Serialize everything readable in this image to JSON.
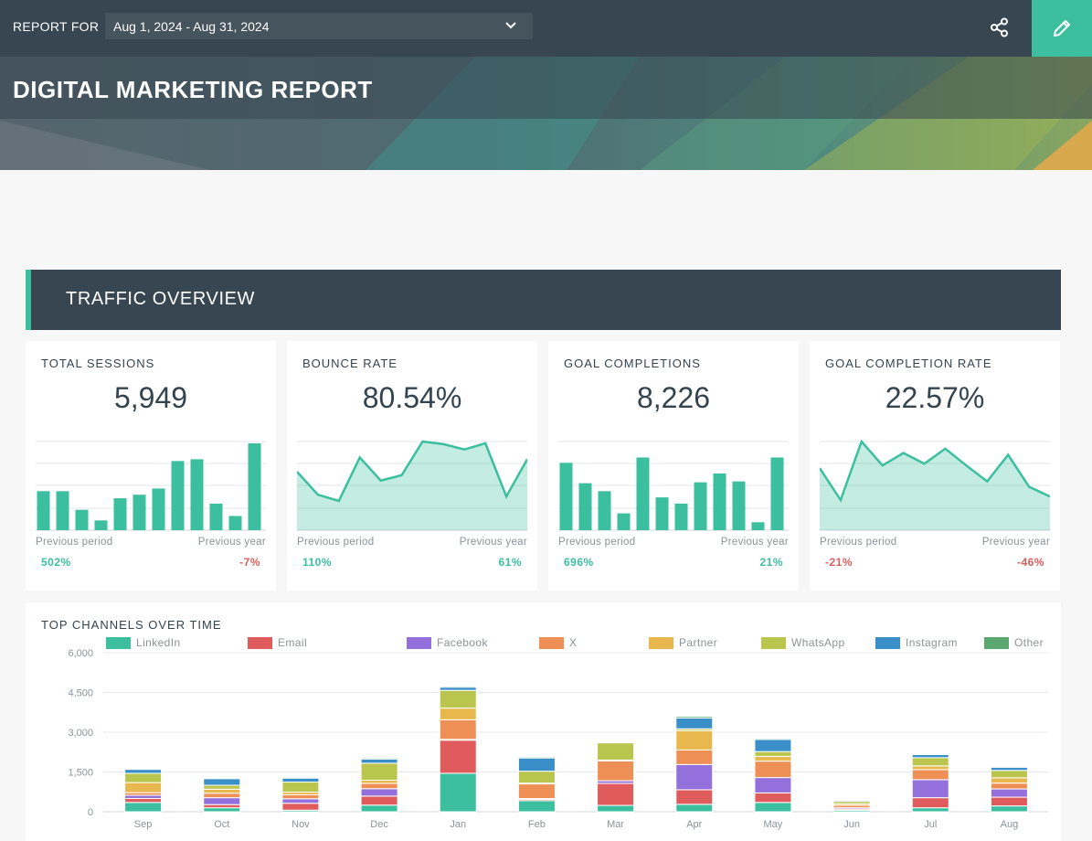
{
  "header": {
    "report_for_label": "REPORT FOR",
    "date_range": "Aug 1, 2024 - Aug 31, 2024",
    "share_icon": "share-icon",
    "edit_icon": "pencil-icon"
  },
  "banner": {
    "title": "DIGITAL MARKETING REPORT"
  },
  "section": {
    "title": "TRAFFIC OVERVIEW"
  },
  "colors": {
    "accent": "#3bbf9e",
    "dark": "#374651",
    "positive": "#3bbf9e",
    "negative": "#e05c5c"
  },
  "kpis": [
    {
      "title": "TOTAL SESSIONS",
      "value": "5,949",
      "chart_type": "bar",
      "values": [
        44,
        44,
        23,
        11,
        36,
        40,
        47,
        78,
        80,
        30,
        16,
        98
      ],
      "prev_label": "Previous period",
      "prev_value": "502%",
      "prev_trend": "positive",
      "year_label": "Previous year",
      "year_value": "-7%",
      "year_trend": "negative"
    },
    {
      "title": "BOUNCE RATE",
      "value": "80.54%",
      "chart_type": "area",
      "values": [
        66,
        40,
        33,
        82,
        56,
        62,
        100,
        97,
        91,
        98,
        38,
        80
      ],
      "prev_label": "Previous period",
      "prev_value": "110%",
      "prev_trend": "positive",
      "year_label": "Previous year",
      "year_value": "61%",
      "year_trend": "positive"
    },
    {
      "title": "GOAL COMPLETIONS",
      "value": "8,226",
      "chart_type": "bar",
      "values": [
        76,
        53,
        44,
        19,
        82,
        37,
        30,
        54,
        64,
        55,
        9,
        82
      ],
      "prev_label": "Previous period",
      "prev_value": "696%",
      "prev_trend": "positive",
      "year_label": "Previous year",
      "year_value": "21%",
      "year_trend": "positive"
    },
    {
      "title": "GOAL COMPLETION RATE",
      "value": "22.57%",
      "chart_type": "area",
      "values": [
        70,
        34,
        100,
        73,
        87,
        75,
        92,
        73,
        55,
        85,
        49,
        38
      ],
      "prev_label": "Previous period",
      "prev_value": "-21%",
      "prev_trend": "negative",
      "year_label": "Previous year",
      "year_value": "-46%",
      "year_trend": "negative"
    }
  ],
  "chart_data": {
    "type": "bar",
    "stacked": true,
    "title": "TOP CHANNELS OVER TIME",
    "categories": [
      "Sep",
      "Oct",
      "Nov",
      "Dec",
      "Jan",
      "Feb",
      "Mar",
      "Apr",
      "May",
      "Jun",
      "Jul",
      "Aug"
    ],
    "ylim": [
      0,
      6000
    ],
    "yticks": [
      0,
      1500,
      3000,
      4500,
      6000
    ],
    "ytick_labels": [
      "0",
      "1,500",
      "3,000",
      "4,500",
      "6,000"
    ],
    "grid": true,
    "legend_position": "top",
    "series": [
      {
        "name": "LinkedIn",
        "color": "#3bbf9e",
        "values": [
          350,
          150,
          60,
          250,
          1450,
          420,
          240,
          280,
          350,
          60,
          150,
          220
        ]
      },
      {
        "name": "Email",
        "color": "#e05c5c",
        "values": [
          150,
          120,
          260,
          340,
          1250,
          50,
          830,
          550,
          360,
          40,
          380,
          330
        ]
      },
      {
        "name": "Facebook",
        "color": "#9370db",
        "values": [
          120,
          260,
          170,
          280,
          30,
          30,
          100,
          950,
          580,
          50,
          680,
          310
        ]
      },
      {
        "name": "X",
        "color": "#ee8f55",
        "values": [
          100,
          170,
          150,
          200,
          740,
          550,
          750,
          550,
          620,
          90,
          380,
          220
        ]
      },
      {
        "name": "Partner",
        "color": "#e8b84f",
        "values": [
          380,
          150,
          100,
          120,
          440,
          30,
          30,
          730,
          180,
          60,
          140,
          200
        ]
      },
      {
        "name": "WhatsApp",
        "color": "#b9c54d",
        "values": [
          350,
          150,
          380,
          640,
          670,
          450,
          650,
          70,
          180,
          90,
          310,
          280
        ]
      },
      {
        "name": "Instagram",
        "color": "#3a8fc8",
        "values": [
          150,
          250,
          150,
          160,
          120,
          500,
          30,
          410,
          460,
          40,
          120,
          120
        ]
      },
      {
        "name": "Other",
        "color": "#5aa870",
        "values": [
          20,
          30,
          30,
          40,
          40,
          40,
          30,
          60,
          40,
          20,
          30,
          20
        ]
      }
    ]
  }
}
